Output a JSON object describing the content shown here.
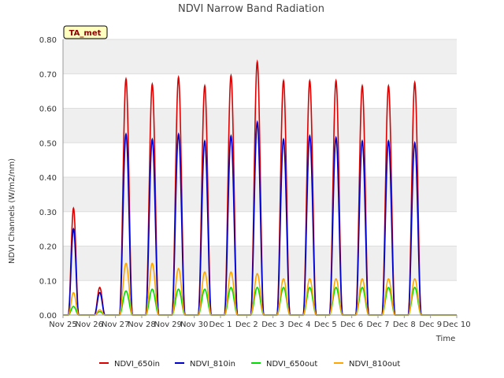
{
  "chart_data": {
    "type": "line",
    "title": "NDVI Narrow Band Radiation",
    "xlabel": "Time",
    "ylabel": "NDVI Channels (W/m2/nm)",
    "ylim": [
      0.0,
      0.8
    ],
    "xlim": [
      0,
      15
    ],
    "grid": "horizontal bands",
    "legend_position": "bottom",
    "badge": "TA_met",
    "x_ticks": [
      {
        "x": 0,
        "label": "Nov 25"
      },
      {
        "x": 1,
        "label": "Nov 26"
      },
      {
        "x": 2,
        "label": "Nov 27"
      },
      {
        "x": 3,
        "label": "Nov 28"
      },
      {
        "x": 4,
        "label": "Nov 29"
      },
      {
        "x": 5,
        "label": "Nov 30"
      },
      {
        "x": 6,
        "label": "Dec 1"
      },
      {
        "x": 7,
        "label": "Dec 2"
      },
      {
        "x": 8,
        "label": "Dec 3"
      },
      {
        "x": 9,
        "label": "Dec 4"
      },
      {
        "x": 10,
        "label": "Dec 5"
      },
      {
        "x": 11,
        "label": "Dec 6"
      },
      {
        "x": 12,
        "label": "Dec 7"
      },
      {
        "x": 13,
        "label": "Dec 8"
      },
      {
        "x": 14,
        "label": "Dec 9"
      },
      {
        "x": 15,
        "label": "Dec 10"
      }
    ],
    "y_ticks": [
      {
        "y": 0.0,
        "label": "0.00"
      },
      {
        "y": 0.1,
        "label": "0.10"
      },
      {
        "y": 0.2,
        "label": "0.20"
      },
      {
        "y": 0.3,
        "label": "0.30"
      },
      {
        "y": 0.4,
        "label": "0.40"
      },
      {
        "y": 0.5,
        "label": "0.50"
      },
      {
        "y": 0.6,
        "label": "0.60"
      },
      {
        "y": 0.7,
        "label": "0.70"
      },
      {
        "y": 0.8,
        "label": "0.80"
      }
    ],
    "series": [
      {
        "name": "NDVI_650in",
        "color": "#dd0000",
        "peaks": [
          0.31,
          0.08,
          0.685,
          0.67,
          0.69,
          0.665,
          0.695,
          0.735,
          0.68,
          0.68,
          0.68,
          0.665,
          0.665,
          0.675
        ]
      },
      {
        "name": "NDVI_810in",
        "color": "#0000cc",
        "peaks": [
          0.25,
          0.065,
          0.525,
          0.51,
          0.525,
          0.505,
          0.52,
          0.56,
          0.51,
          0.52,
          0.515,
          0.505,
          0.505,
          0.5
        ]
      },
      {
        "name": "NDVI_650out",
        "color": "#00dd00",
        "peaks": [
          0.025,
          0.01,
          0.07,
          0.075,
          0.075,
          0.075,
          0.08,
          0.08,
          0.08,
          0.08,
          0.08,
          0.08,
          0.08,
          0.08
        ]
      },
      {
        "name": "NDVI_810out",
        "color": "#ffa500",
        "peaks": [
          0.065,
          0.015,
          0.15,
          0.15,
          0.135,
          0.125,
          0.125,
          0.12,
          0.105,
          0.105,
          0.105,
          0.105,
          0.105,
          0.105
        ]
      }
    ],
    "day_offsets": [
      0.4,
      1.4,
      2.4,
      3.4,
      4.4,
      5.4,
      6.4,
      7.4,
      8.4,
      9.4,
      10.4,
      11.4,
      12.4,
      13.4
    ]
  }
}
